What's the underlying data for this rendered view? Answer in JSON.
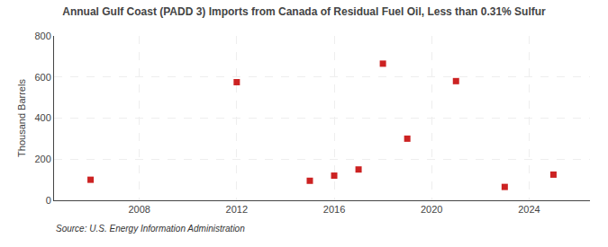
{
  "chart_data": {
    "type": "scatter",
    "title": "Annual Gulf Coast (PADD 3) Imports from Canada of Residual Fuel Oil, Less than 0.31% Sulfur",
    "ylabel": "Thousand Barrels",
    "annotations": [
      "Source: U.S. Energy Information Administration"
    ],
    "x": [
      2006,
      2012,
      2015,
      2016,
      2017,
      2018,
      2019,
      2021,
      2023,
      2025
    ],
    "values": [
      100,
      575,
      95,
      120,
      150,
      665,
      300,
      580,
      65,
      125
    ],
    "color": "#cc2222",
    "marker": "square",
    "xlim": [
      2004.5,
      2026.5
    ],
    "ylim": [
      0,
      800
    ],
    "xticks": [
      2008,
      2012,
      2016,
      2020,
      2024
    ],
    "yticks": [
      0,
      200,
      400,
      600,
      800
    ],
    "grid": true
  }
}
